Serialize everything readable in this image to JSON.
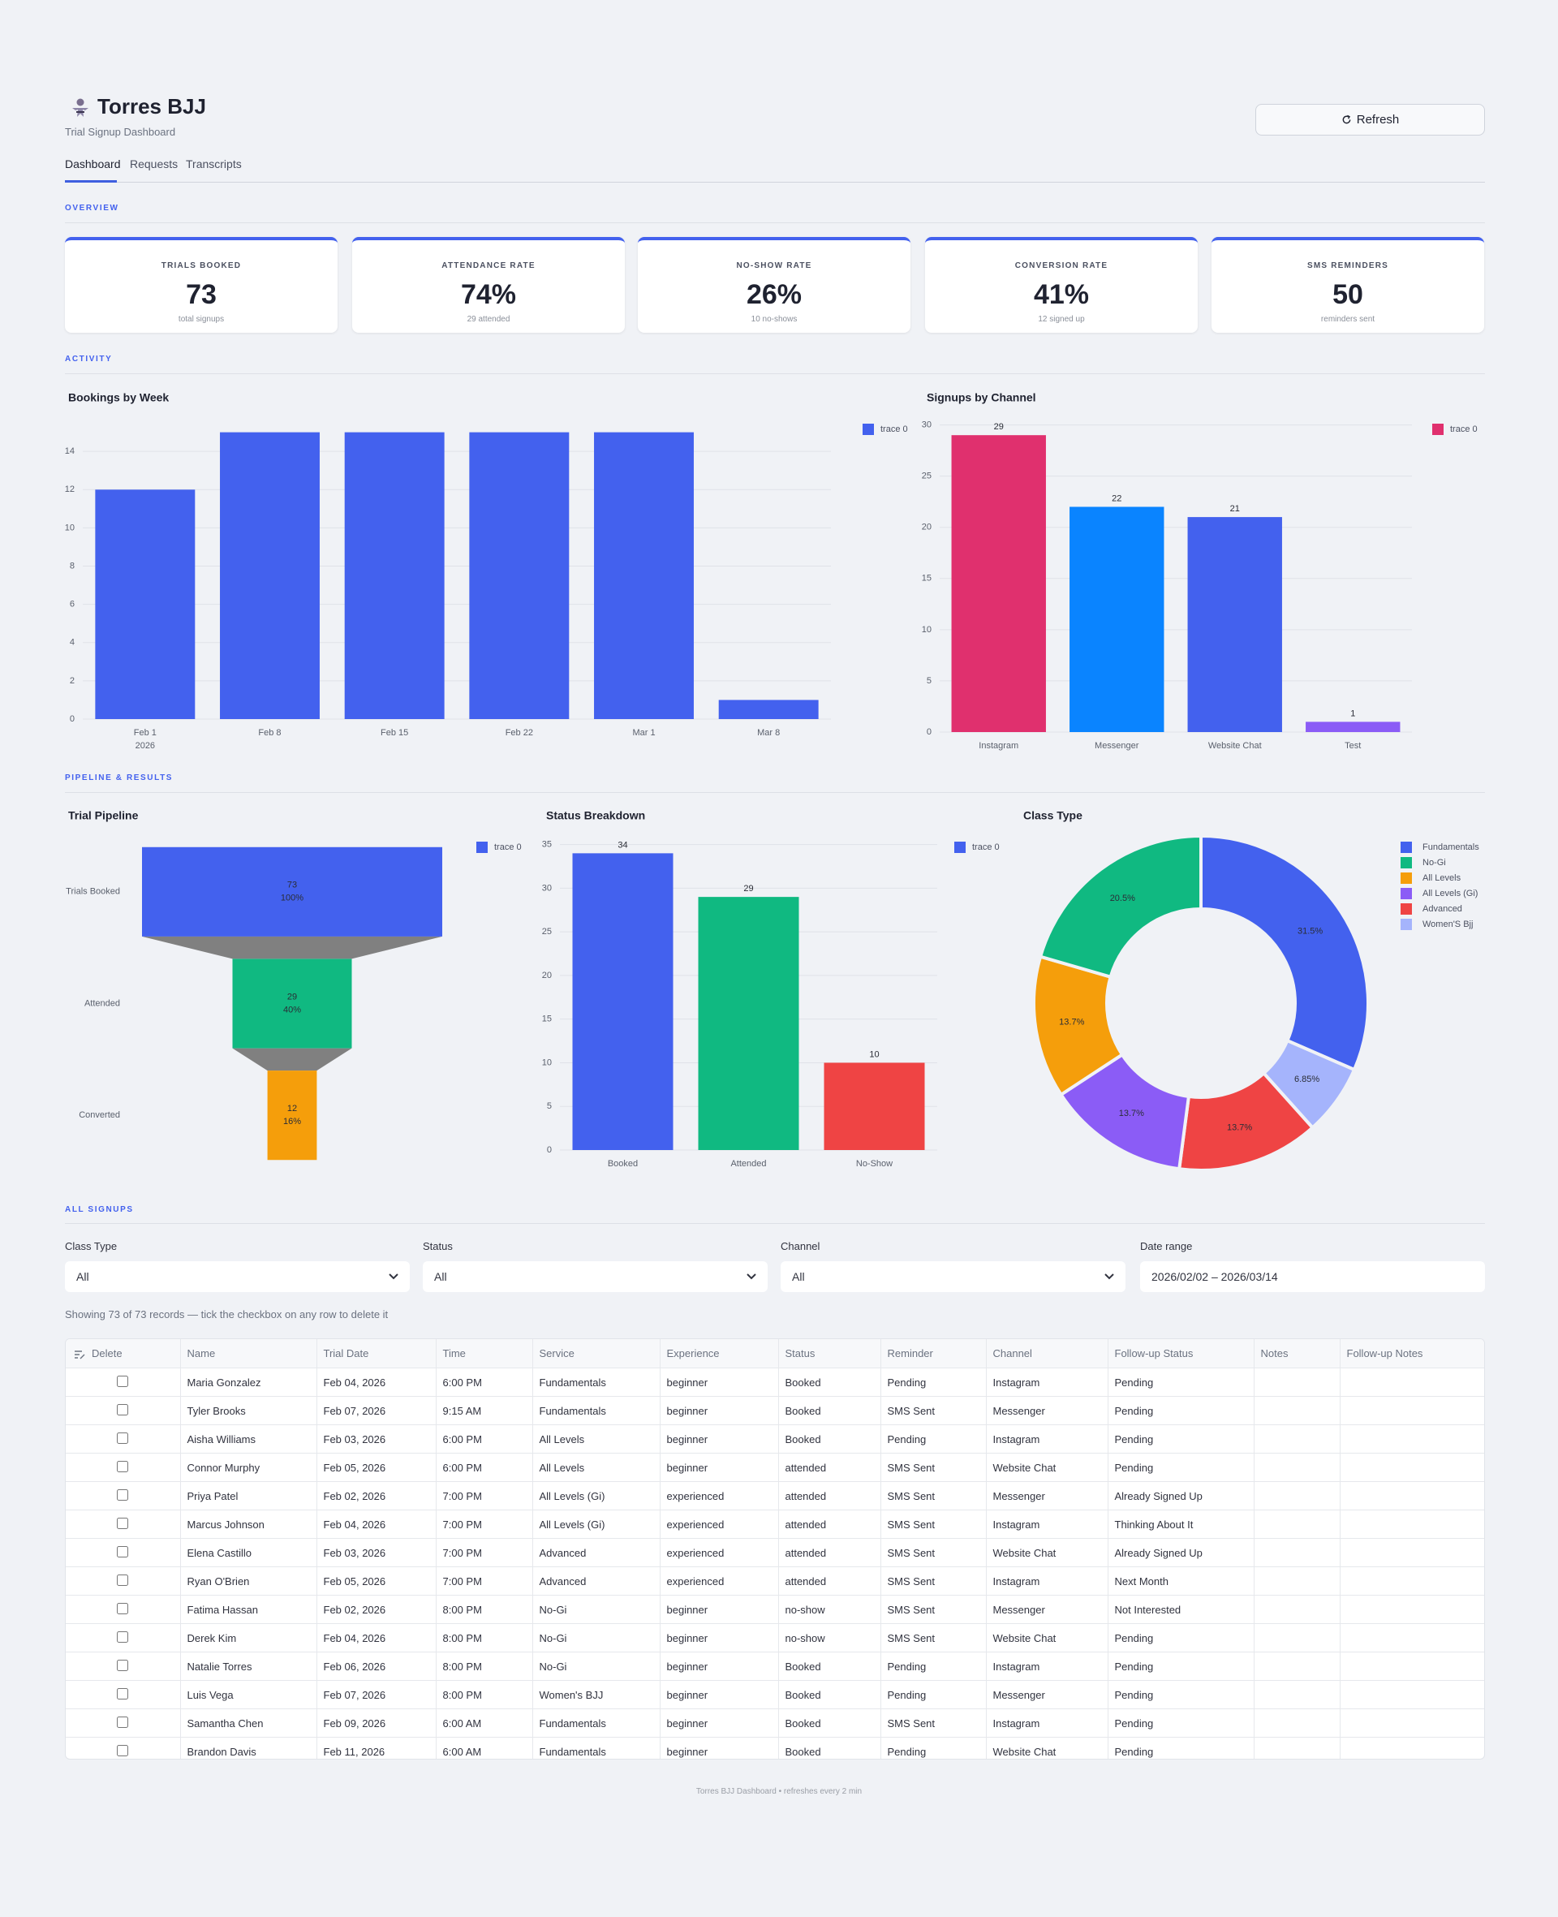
{
  "header": {
    "title": "Torres BJJ",
    "subtitle": "Trial Signup Dashboard",
    "refresh": "Refresh"
  },
  "tabs": [
    "Dashboard",
    "Requests",
    "Transcripts"
  ],
  "sections": {
    "overview": "OVERVIEW",
    "activity": "ACTIVITY",
    "pipeline": "PIPELINE & RESULTS",
    "signups": "ALL SIGNUPS"
  },
  "kpis": [
    {
      "label": "TRIALS BOOKED",
      "value": "73",
      "sub": "total signups"
    },
    {
      "label": "ATTENDANCE RATE",
      "value": "74%",
      "sub": "29 attended"
    },
    {
      "label": "NO-SHOW RATE",
      "value": "26%",
      "sub": "10 no-shows"
    },
    {
      "label": "CONVERSION RATE",
      "value": "41%",
      "sub": "12 signed up"
    },
    {
      "label": "SMS REMINDERS",
      "value": "50",
      "sub": "reminders sent"
    }
  ],
  "chart_data": [
    {
      "type": "bar",
      "title": "Bookings by Week",
      "categories": [
        "Feb 1",
        "Feb 8",
        "Feb 15",
        "Feb 22",
        "Mar 1",
        "Mar 8"
      ],
      "year_label": "2026",
      "series": [
        {
          "name": "trace 0",
          "color": "#4361ee",
          "values": [
            12,
            15,
            15,
            15,
            15,
            1
          ]
        }
      ],
      "ylim": [
        0,
        15.79
      ],
      "yticks": [
        0,
        2,
        4,
        6,
        8,
        10,
        12,
        14
      ],
      "grid": true
    },
    {
      "type": "bar",
      "title": "Signups by Channel",
      "categories": [
        "Instagram",
        "Messenger",
        "Website Chat",
        "Test"
      ],
      "series": [
        {
          "name": "trace 0",
          "colors": [
            "#e0306e",
            "#0a84ff",
            "#4361ee",
            "#8b5cf6"
          ],
          "values": [
            29,
            22,
            21,
            1
          ]
        }
      ],
      "ylim": [
        0,
        30.6
      ],
      "yticks": [
        0,
        5,
        10,
        15,
        20,
        25,
        30
      ],
      "grid": true,
      "bar_labels": true
    },
    {
      "type": "funnel",
      "title": "Trial Pipeline",
      "categories": [
        "Trials Booked",
        "Attended",
        "Converted"
      ],
      "series": [
        {
          "name": "trace 0",
          "colors": [
            "#4361ee",
            "#10b981",
            "#f59e0b"
          ],
          "values": [
            73,
            29,
            12
          ],
          "percent_labels": [
            "100%",
            "40%",
            "16%"
          ]
        }
      ],
      "connector_color": "#808080"
    },
    {
      "type": "bar",
      "title": "Status Breakdown",
      "categories": [
        "Booked",
        "Attended",
        "No-Show"
      ],
      "series": [
        {
          "name": "trace 0",
          "colors": [
            "#4361ee",
            "#10b981",
            "#ef4444"
          ],
          "values": [
            34,
            29,
            10
          ]
        }
      ],
      "ylim": [
        0,
        35.8
      ],
      "yticks": [
        0,
        5,
        10,
        15,
        20,
        25,
        30,
        35
      ],
      "grid": true,
      "bar_labels": true
    },
    {
      "type": "pie",
      "title": "Class Type",
      "categories": [
        "Fundamentals",
        "No-Gi",
        "All Levels",
        "All Levels (Gi)",
        "Advanced",
        "Women'S Bjj"
      ],
      "values": [
        31.5,
        20.5,
        13.7,
        13.7,
        13.7,
        6.85
      ],
      "value_labels": [
        "31.5%",
        "20.5%",
        "13.7%",
        "13.7%",
        "13.7%",
        "6.85%"
      ],
      "colors": [
        "#4361ee",
        "#10b981",
        "#f59e0b",
        "#8b5cf6",
        "#ef4444",
        "#a5b4fc"
      ]
    }
  ],
  "filters": [
    {
      "label": "Class Type",
      "value": "All"
    },
    {
      "label": "Status",
      "value": "All"
    },
    {
      "label": "Channel",
      "value": "All"
    },
    {
      "label": "Date range",
      "value": "2026/02/02 – 2026/03/14"
    }
  ],
  "caption": "Showing 73 of 73 records — tick the checkbox on any row to delete it",
  "table": {
    "columns": [
      "Delete",
      "Name",
      "Trial Date",
      "Time",
      "Service",
      "Experience",
      "Status",
      "Reminder",
      "Channel",
      "Follow-up Status",
      "Notes",
      "Follow-up Notes"
    ],
    "rows": [
      [
        "Maria Gonzalez",
        "Feb 04, 2026",
        "6:00 PM",
        "Fundamentals",
        "beginner",
        "Booked",
        "Pending",
        "Instagram",
        "Pending"
      ],
      [
        "Tyler Brooks",
        "Feb 07, 2026",
        "9:15 AM",
        "Fundamentals",
        "beginner",
        "Booked",
        "SMS Sent",
        "Messenger",
        "Pending"
      ],
      [
        "Aisha Williams",
        "Feb 03, 2026",
        "6:00 PM",
        "All Levels",
        "beginner",
        "Booked",
        "Pending",
        "Instagram",
        "Pending"
      ],
      [
        "Connor Murphy",
        "Feb 05, 2026",
        "6:00 PM",
        "All Levels",
        "beginner",
        "attended",
        "SMS Sent",
        "Website Chat",
        "Pending"
      ],
      [
        "Priya Patel",
        "Feb 02, 2026",
        "7:00 PM",
        "All Levels (Gi)",
        "experienced",
        "attended",
        "SMS Sent",
        "Messenger",
        "Already Signed Up"
      ],
      [
        "Marcus Johnson",
        "Feb 04, 2026",
        "7:00 PM",
        "All Levels (Gi)",
        "experienced",
        "attended",
        "SMS Sent",
        "Instagram",
        "Thinking About It"
      ],
      [
        "Elena Castillo",
        "Feb 03, 2026",
        "7:00 PM",
        "Advanced",
        "experienced",
        "attended",
        "SMS Sent",
        "Website Chat",
        "Already Signed Up"
      ],
      [
        "Ryan O'Brien",
        "Feb 05, 2026",
        "7:00 PM",
        "Advanced",
        "experienced",
        "attended",
        "SMS Sent",
        "Instagram",
        "Next Month"
      ],
      [
        "Fatima Hassan",
        "Feb 02, 2026",
        "8:00 PM",
        "No-Gi",
        "beginner",
        "no-show",
        "SMS Sent",
        "Messenger",
        "Not Interested"
      ],
      [
        "Derek Kim",
        "Feb 04, 2026",
        "8:00 PM",
        "No-Gi",
        "beginner",
        "no-show",
        "SMS Sent",
        "Website Chat",
        "Pending"
      ],
      [
        "Natalie Torres",
        "Feb 06, 2026",
        "8:00 PM",
        "No-Gi",
        "beginner",
        "Booked",
        "Pending",
        "Instagram",
        "Pending"
      ],
      [
        "Luis Vega",
        "Feb 07, 2026",
        "8:00 PM",
        "Women's BJJ",
        "beginner",
        "Booked",
        "Pending",
        "Messenger",
        "Pending"
      ],
      [
        "Samantha Chen",
        "Feb 09, 2026",
        "6:00 AM",
        "Fundamentals",
        "beginner",
        "Booked",
        "SMS Sent",
        "Instagram",
        "Pending"
      ],
      [
        "Brandon Davis",
        "Feb 11, 2026",
        "6:00 AM",
        "Fundamentals",
        "beginner",
        "Booked",
        "Pending",
        "Website Chat",
        "Pending"
      ]
    ]
  },
  "footer": "Torres BJJ Dashboard • refreshes every 2 min"
}
